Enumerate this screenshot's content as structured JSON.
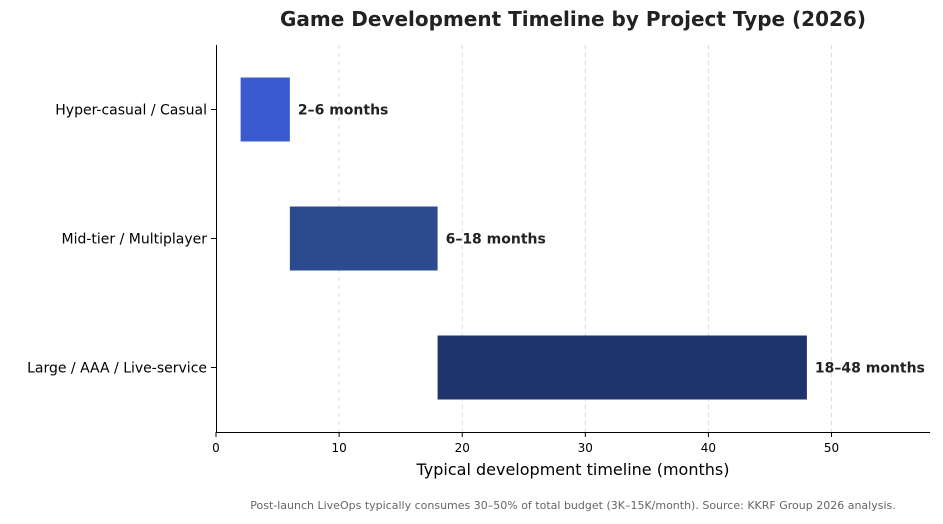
{
  "chart_data": {
    "type": "bar",
    "orientation": "horizontal",
    "title": "Game Development Timeline by Project Type (2026)",
    "xlabel": "Typical development timeline (months)",
    "ylabel": "",
    "xlim": [
      0,
      58
    ],
    "xticks": [
      "0",
      "10",
      "20",
      "30",
      "40",
      "50"
    ],
    "grid": "vertical dashed",
    "categories": [
      "Hyper-casual / Casual",
      "Mid-tier / Multiplayer",
      "Large / AAA / Live-service"
    ],
    "ranges": [
      {
        "category": "Hyper-casual / Casual",
        "start": 2,
        "end": 6,
        "label": "2–6 months",
        "color": "#3a5bd0"
      },
      {
        "category": "Mid-tier / Multiplayer",
        "start": 6,
        "end": 18,
        "label": "6–18 months",
        "color": "#2c4a8e"
      },
      {
        "category": "Large / AAA / Live-service",
        "start": 18,
        "end": 48,
        "label": "18–48 months",
        "color": "#1f346b"
      }
    ],
    "footnote": "Post-launch LiveOps typically consumes 30–50% of total budget (3K–15K/month). Source: KKRF Group 2026 analysis."
  }
}
